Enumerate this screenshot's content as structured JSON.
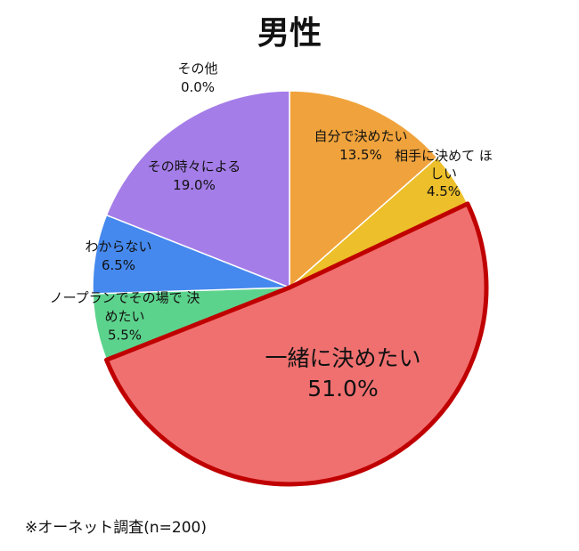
{
  "title": "男性",
  "note": "※オーネット調査(n=200)",
  "chart_data": {
    "type": "pie",
    "title": "男性",
    "start_angle": "top, clockwise",
    "slices": [
      {
        "label": "自分で決めたい",
        "value": 13.5,
        "value_label": "13.5%",
        "color": "#F0A33C"
      },
      {
        "label": "相手に決めて ほしい",
        "value": 4.5,
        "value_label": "4.5%",
        "color": "#EDBF2A"
      },
      {
        "label": "一緒に決めたい",
        "value": 51.0,
        "value_label": "51.0%",
        "color": "#F07070",
        "highlight": "#C00000"
      },
      {
        "label": "ノープランでその場で 決めたい",
        "value": 5.5,
        "value_label": "5.5%",
        "color": "#5CD38C"
      },
      {
        "label": "わからない",
        "value": 6.5,
        "value_label": "6.5%",
        "color": "#4589EE"
      },
      {
        "label": "その時々による",
        "value": 19.0,
        "value_label": "19.0%",
        "color": "#A47DE8"
      },
      {
        "label": "その他",
        "value": 0.0,
        "value_label": "0.0%",
        "color": "#888888"
      }
    ]
  }
}
